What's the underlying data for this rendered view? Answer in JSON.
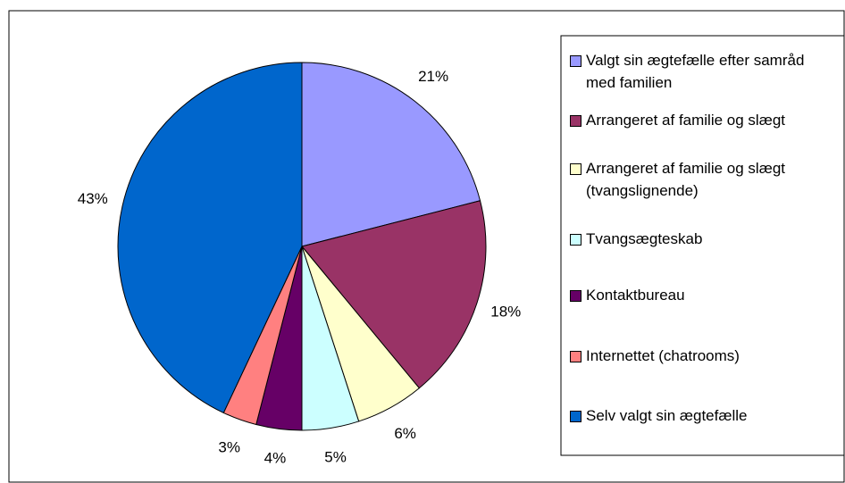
{
  "chart_data": {
    "type": "pie",
    "categories": [
      "Valgt sin ægtefælle efter samråd med familien",
      "Arrangeret af familie og slægt",
      "Arrangeret af familie og slægt (tvangslignende)",
      "Tvangsægteskab",
      "Kontaktbureau",
      "Internettet (chatrooms)",
      "Selv valgt sin ægtefælle"
    ],
    "values": [
      21,
      18,
      6,
      5,
      4,
      3,
      43
    ],
    "value_labels": [
      "21%",
      "18%",
      "6%",
      "5%",
      "4%",
      "3%",
      "43%"
    ],
    "colors": [
      "#9999ff",
      "#993366",
      "#ffffcc",
      "#ccffff",
      "#660066",
      "#ff8080",
      "#0066cc"
    ]
  }
}
